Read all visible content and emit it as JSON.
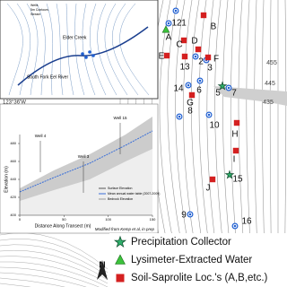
{
  "inset_map": {
    "labels": [
      "Elder Creek",
      "South Fork Eel River"
    ],
    "legend": [
      "Wells",
      "5m Contours",
      "Stream"
    ]
  },
  "profile": {
    "wells": [
      "Well 4",
      "Well 3",
      "Well 15"
    ],
    "y_axis_label": "Elevation (m)",
    "x_axis_label": "Distance Along Transect (m)",
    "yticks": [
      400,
      420,
      440,
      460,
      480
    ],
    "xticks": [
      0,
      50,
      100,
      150
    ],
    "legend": [
      "Surface Elevation",
      "Mean annual water table (2007-2009)",
      "Bedrock Elevation"
    ],
    "credit": "Modified from Kemp et al, in prep"
  },
  "coordinate": "123°36'W",
  "sites": [
    {
      "label": "12",
      "marker": "well"
    },
    {
      "label": "1",
      "marker": "well"
    },
    {
      "label": "A",
      "marker": "triangle"
    },
    {
      "label": "B",
      "marker": "square"
    },
    {
      "label": "C",
      "marker": "square"
    },
    {
      "label": "D",
      "marker": "square"
    },
    {
      "label": "E",
      "marker": "square"
    },
    {
      "label": "13",
      "marker": "square"
    },
    {
      "label": "2",
      "marker": "well"
    },
    {
      "label": "3",
      "marker": "well"
    },
    {
      "label": "F",
      "marker": "square"
    },
    {
      "label": "14",
      "marker": "well"
    },
    {
      "label": "6",
      "marker": "well"
    },
    {
      "label": "7",
      "marker": "well"
    },
    {
      "label": "5",
      "marker": "star"
    },
    {
      "label": "G",
      "marker": "square"
    },
    {
      "label": "8",
      "marker": "well"
    },
    {
      "label": "10",
      "marker": "well"
    },
    {
      "label": "H",
      "marker": "square"
    },
    {
      "label": "I",
      "marker": "square"
    },
    {
      "label": "J",
      "marker": "square"
    },
    {
      "label": "15",
      "marker": "star"
    },
    {
      "label": "9",
      "marker": "well"
    },
    {
      "label": "16",
      "marker": "well"
    }
  ],
  "contours": [
    "455",
    "445",
    "435"
  ],
  "north": "N",
  "legend": [
    {
      "marker": "star",
      "label": "Precipitation Collector"
    },
    {
      "marker": "triangle",
      "label": "Lysimeter-Extracted Water"
    },
    {
      "marker": "square",
      "label": "Soil-Saprolite Loc.'s (A,B,etc.)"
    }
  ]
}
